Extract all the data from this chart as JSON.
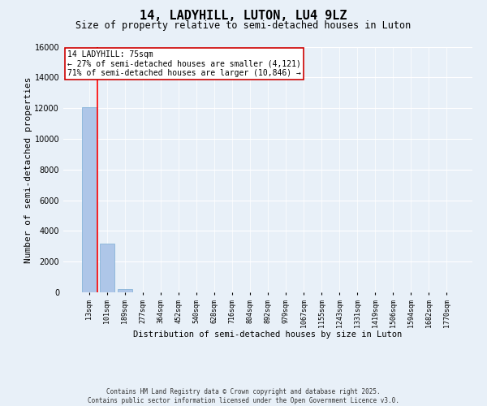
{
  "title": "14, LADYHILL, LUTON, LU4 9LZ",
  "subtitle": "Size of property relative to semi-detached houses in Luton",
  "xlabel": "Distribution of semi-detached houses by size in Luton",
  "ylabel": "Number of semi-detached properties",
  "categories": [
    "13sqm",
    "101sqm",
    "189sqm",
    "277sqm",
    "364sqm",
    "452sqm",
    "540sqm",
    "628sqm",
    "716sqm",
    "804sqm",
    "892sqm",
    "979sqm",
    "1067sqm",
    "1155sqm",
    "1243sqm",
    "1331sqm",
    "1419sqm",
    "1506sqm",
    "1594sqm",
    "1682sqm",
    "1770sqm"
  ],
  "values": [
    12050,
    3200,
    200,
    0,
    0,
    0,
    0,
    0,
    0,
    0,
    0,
    0,
    0,
    0,
    0,
    0,
    0,
    0,
    0,
    0,
    0
  ],
  "bar_color": "#aec6e8",
  "bar_edge_color": "#7aadd4",
  "red_line_x": 0.47,
  "annotation_title": "14 LADYHILL: 75sqm",
  "annotation_line1": "← 27% of semi-detached houses are smaller (4,121)",
  "annotation_line2": "71% of semi-detached houses are larger (10,846) →",
  "annotation_box_facecolor": "#ffffff",
  "annotation_box_edgecolor": "#cc0000",
  "ylim": [
    0,
    16000
  ],
  "yticks": [
    0,
    2000,
    4000,
    6000,
    8000,
    10000,
    12000,
    14000,
    16000
  ],
  "footer_line1": "Contains HM Land Registry data © Crown copyright and database right 2025.",
  "footer_line2": "Contains public sector information licensed under the Open Government Licence v3.0.",
  "background_color": "#e8f0f8",
  "grid_color": "#ffffff",
  "title_fontsize": 11,
  "subtitle_fontsize": 8.5,
  "tick_fontsize": 6,
  "ylabel_fontsize": 8,
  "xlabel_fontsize": 7.5,
  "annotation_fontsize": 7,
  "footer_fontsize": 5.5
}
